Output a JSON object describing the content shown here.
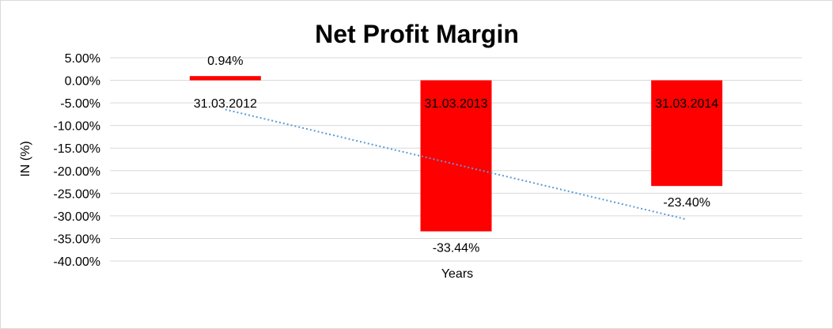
{
  "chart_data": {
    "type": "bar",
    "title": "Net Profit Margin",
    "xlabel": "Years",
    "ylabel": "IN (%)",
    "categories": [
      "31.03.2012",
      "31.03.2013",
      "31.03.2014"
    ],
    "values": [
      0.94,
      -33.44,
      -23.4
    ],
    "data_labels": [
      "0.94%",
      "-33.44%",
      "-23.40%"
    ],
    "ylim": [
      -40,
      5
    ],
    "y_ticks": [
      5,
      0,
      -5,
      -10,
      -15,
      -20,
      -25,
      -30,
      -35,
      -40
    ],
    "y_tick_labels": [
      "5.00%",
      "0.00%",
      "-5.00%",
      "-10.00%",
      "-15.00%",
      "-20.00%",
      "-25.00%",
      "-30.00%",
      "-35.00%",
      "-40.00%"
    ],
    "grid": true,
    "trendline": {
      "type": "linear",
      "style": "dotted",
      "color": "#5b9bd5"
    },
    "bar_color": "#ff0000",
    "gridline_color": "#d9d9d9"
  }
}
